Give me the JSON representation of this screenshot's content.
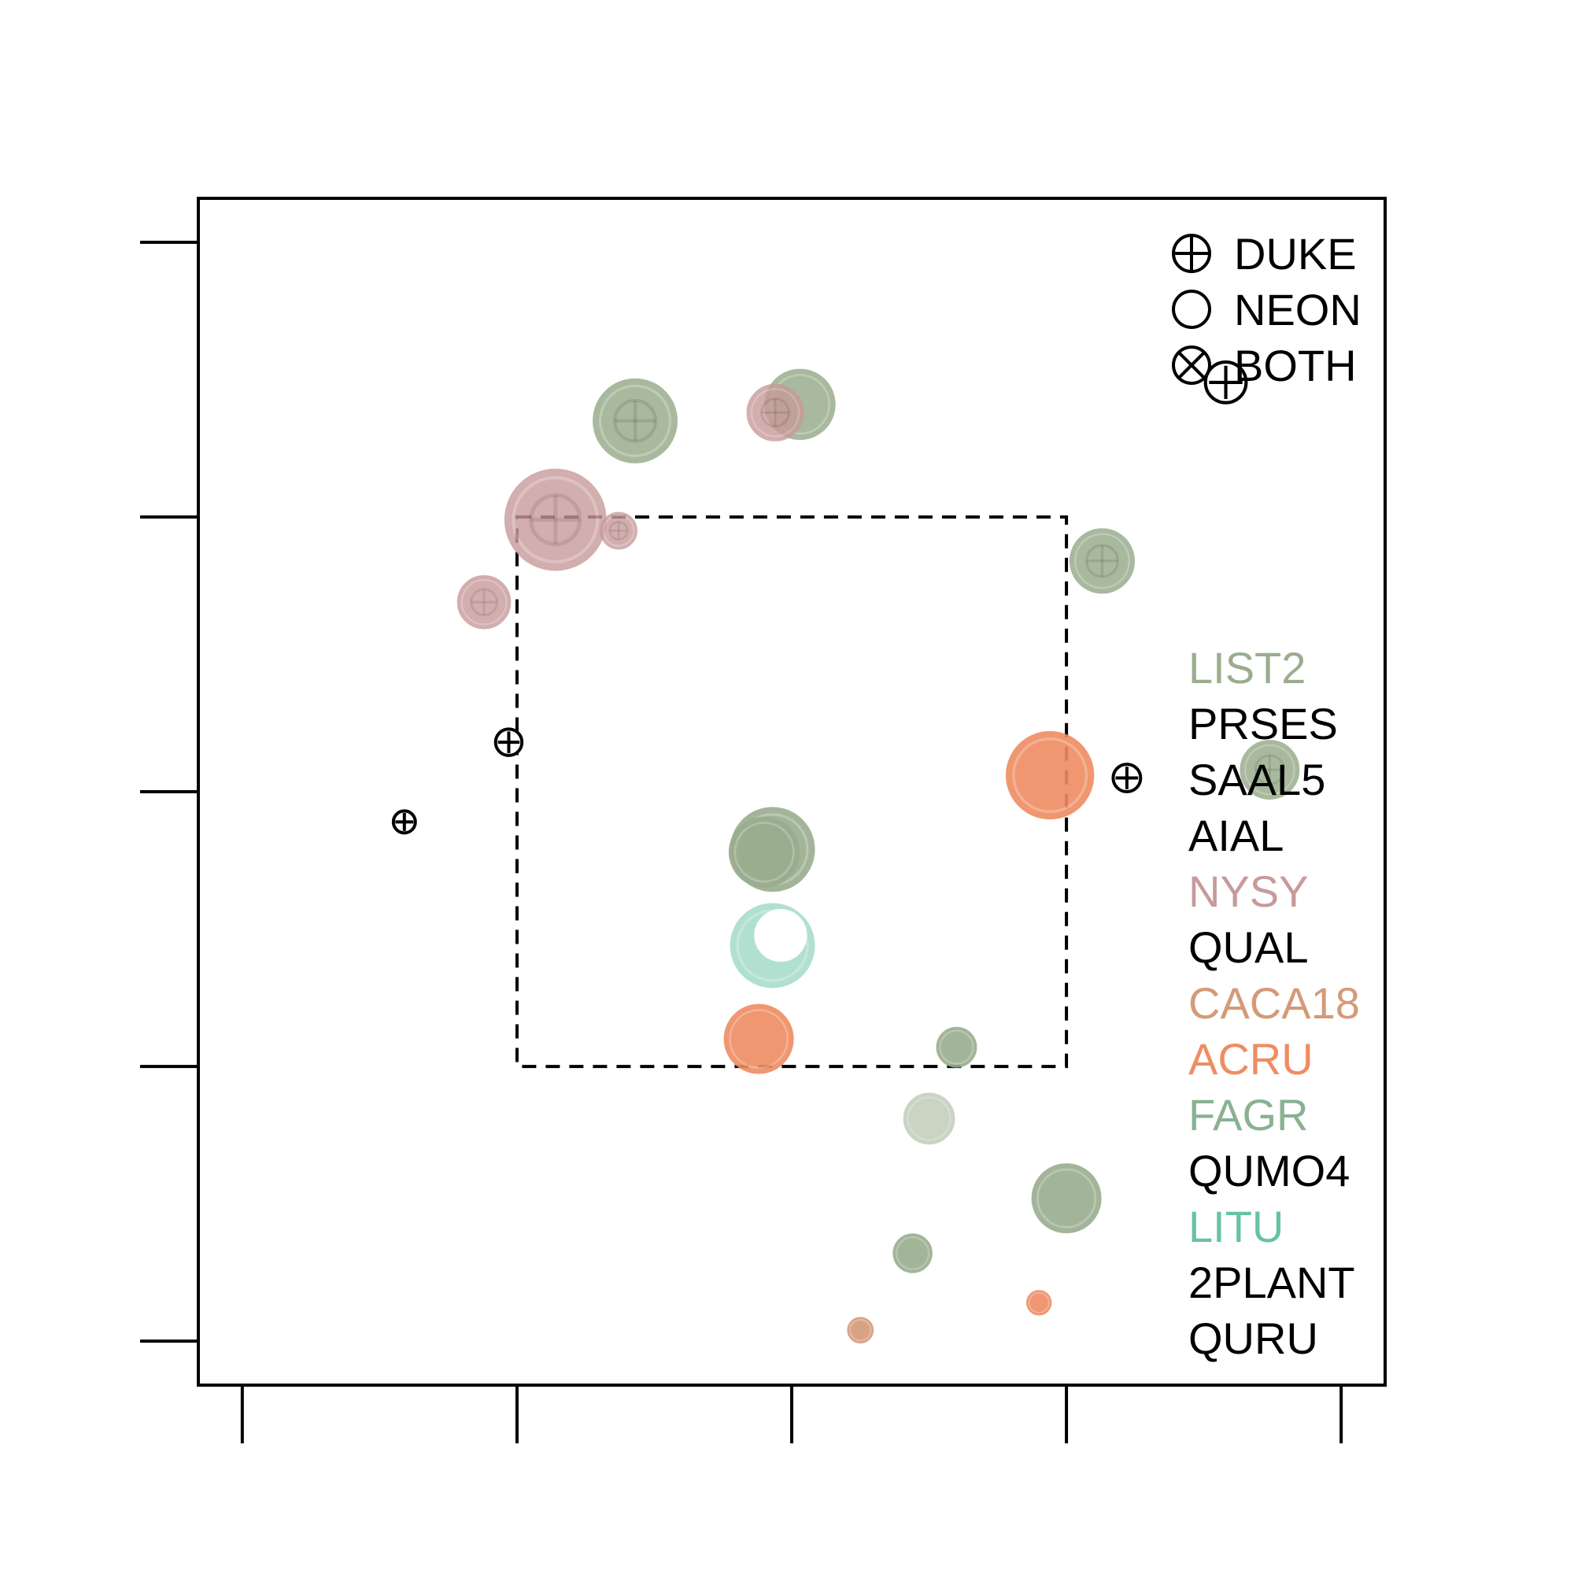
{
  "chart_data": {
    "type": "scatter",
    "title": "",
    "xlabel": "",
    "ylabel": "",
    "xlim": [
      -0.08,
      2.08
    ],
    "ylim": [
      -0.08,
      2.08
    ],
    "xticks": [
      0,
      0.5,
      1,
      1.5,
      2
    ],
    "yticks": [
      0,
      0.5,
      1,
      1.5,
      2
    ],
    "grid": false,
    "reference_box": {
      "x": [
        0.5,
        1.5
      ],
      "y": [
        0.5,
        1.5
      ],
      "style": "dashed"
    },
    "site_legend": {
      "placement": "top-right",
      "entries": [
        {
          "label": "DUKE",
          "marker": "circle-plus"
        },
        {
          "label": "NEON",
          "marker": "circle"
        },
        {
          "label": "BOTH",
          "marker": "circle-x"
        }
      ]
    },
    "species_legend": {
      "placement": "right",
      "entries": [
        {
          "label": "LIST2",
          "color": "#9aad8e"
        },
        {
          "label": "PRSES",
          "color": "#000000"
        },
        {
          "label": "SAAL5",
          "color": "#000000"
        },
        {
          "label": "AIAL",
          "color": "#000000"
        },
        {
          "label": "NYSY",
          "color": "#c89a9a"
        },
        {
          "label": "QUAL",
          "color": "#000000"
        },
        {
          "label": "CACA18",
          "color": "#d49a78"
        },
        {
          "label": "ACRU",
          "color": "#ef8c62"
        },
        {
          "label": "FAGR",
          "color": "#88b292"
        },
        {
          "label": "QUMO4",
          "color": "#000000"
        },
        {
          "label": "LITU",
          "color": "#66c2a5"
        },
        {
          "label": "2PLANT",
          "color": "#000000"
        },
        {
          "label": "QURU",
          "color": "#000000"
        }
      ]
    },
    "points": [
      {
        "x": 0.715,
        "y": 1.675,
        "r": 0.074,
        "color": "#9aad8e",
        "marker": "circle-plus",
        "opacity": 0.85
      },
      {
        "x": 1.015,
        "y": 1.705,
        "r": 0.062,
        "color": "#9aad8e",
        "marker": "circle",
        "opacity": 0.85
      },
      {
        "x": 0.97,
        "y": 1.69,
        "r": 0.05,
        "color": "#c89a9a",
        "marker": "circle-plus",
        "opacity": 0.8
      },
      {
        "x": 0.57,
        "y": 1.495,
        "r": 0.089,
        "color": "#c89a9a",
        "marker": "circle-plus",
        "opacity": 0.8
      },
      {
        "x": 0.685,
        "y": 1.475,
        "r": 0.032,
        "color": "#c89a9a",
        "marker": "circle-plus",
        "opacity": 0.8
      },
      {
        "x": 0.44,
        "y": 1.345,
        "r": 0.047,
        "color": "#c89a9a",
        "marker": "circle-plus",
        "opacity": 0.8
      },
      {
        "x": 1.565,
        "y": 1.42,
        "r": 0.057,
        "color": "#9aad8e",
        "marker": "circle-plus",
        "opacity": 0.85
      },
      {
        "x": 1.87,
        "y": 1.04,
        "r": 0.052,
        "color": "#9aad8e",
        "marker": "circle-plus",
        "opacity": 0.85
      },
      {
        "x": 0.485,
        "y": 1.09,
        "r": 0.024,
        "color": "#000000",
        "marker": "circle-plus",
        "opacity": 1
      },
      {
        "x": 0.295,
        "y": 0.945,
        "r": 0.02,
        "color": "#000000",
        "marker": "circle-plus",
        "opacity": 1
      },
      {
        "x": 1.61,
        "y": 1.025,
        "r": 0.025,
        "color": "#000000",
        "marker": "circle-plus",
        "opacity": 1
      },
      {
        "x": 1.79,
        "y": 1.745,
        "r": 0.037,
        "color": "#000000",
        "marker": "circle-plus",
        "opacity": 1
      },
      {
        "x": 1.47,
        "y": 1.03,
        "r": 0.077,
        "color": "#ef8c62",
        "marker": "circle",
        "opacity": 0.9
      },
      {
        "x": 0.965,
        "y": 0.895,
        "r": 0.074,
        "color": "#9aad8e",
        "marker": "circle",
        "opacity": 0.9
      },
      {
        "x": 0.95,
        "y": 0.89,
        "r": 0.062,
        "color": "#9aad8e",
        "marker": "circle",
        "opacity": 0.9
      },
      {
        "x": 0.965,
        "y": 0.72,
        "r": 0.074,
        "color": "#66c2a5",
        "marker": "circle",
        "opacity": 0.5
      },
      {
        "x": 0.94,
        "y": 0.55,
        "r": 0.061,
        "color": "#ef8c62",
        "marker": "circle",
        "opacity": 0.9
      },
      {
        "x": 1.3,
        "y": 0.535,
        "r": 0.035,
        "color": "#9aad8e",
        "marker": "circle",
        "opacity": 0.9
      },
      {
        "x": 1.25,
        "y": 0.405,
        "r": 0.045,
        "color": "#c3cdb9",
        "marker": "circle",
        "opacity": 0.85
      },
      {
        "x": 1.5,
        "y": 0.26,
        "r": 0.061,
        "color": "#9aad8e",
        "marker": "circle",
        "opacity": 0.9
      },
      {
        "x": 1.22,
        "y": 0.16,
        "r": 0.034,
        "color": "#9aad8e",
        "marker": "circle",
        "opacity": 0.9
      },
      {
        "x": 1.45,
        "y": 0.07,
        "r": 0.021,
        "color": "#ef8c62",
        "marker": "circle",
        "opacity": 0.9
      },
      {
        "x": 1.125,
        "y": 0.02,
        "r": 0.022,
        "color": "#d49a78",
        "marker": "circle",
        "opacity": 0.9
      }
    ]
  }
}
